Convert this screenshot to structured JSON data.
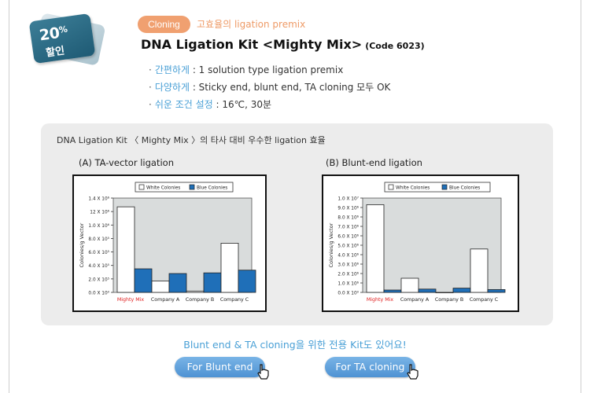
{
  "badge": {
    "percent": "20",
    "percent_sign": "%",
    "label": "할인"
  },
  "header": {
    "category": "Cloning",
    "category_sub": "고효율의 ligation premix",
    "title": "DNA Ligation Kit <Mighty Mix>",
    "code": "(Code 6023)"
  },
  "features": [
    {
      "key": "간편하게",
      "text": " : 1 solution type ligation premix"
    },
    {
      "key": "다양하게",
      "text": " : Sticky end, blunt end, TA cloning 모두 OK"
    },
    {
      "key": "쉬운 조건 설정",
      "text": " : 16℃, 30분"
    }
  ],
  "panel": {
    "title": "DNA Ligation Kit 〈 Mighty Mix 〉의 타사 대비 우수한 ligation 효율"
  },
  "colors": {
    "white_colonies": "#ffffff",
    "blue_colonies": "#1f6fb8",
    "highlight": "#e02020",
    "plot_bg": "#d9dcdc"
  },
  "chart_data": [
    {
      "type": "bar",
      "title": "(A) TA-vector ligation",
      "ylabel": "Colonies/g Vector",
      "categories": [
        "Mighty Mix",
        "Company A",
        "Company B",
        "Company C"
      ],
      "series": [
        {
          "name": "White Colonies",
          "values": [
            1270000.0,
            170000.0,
            20000.0,
            730000.0
          ]
        },
        {
          "name": "Blue Colonies",
          "values": [
            350000.0,
            280000.0,
            290000.0,
            330000.0
          ]
        }
      ],
      "ylim": [
        0,
        1400000.0
      ],
      "y_ticks": [
        "0.0 X 10⁰",
        "2.0 X 10⁵",
        "4.0 X 10⁵",
        "6.0 X 10⁵",
        "8.0 X 10⁵",
        "1.0 X 10⁶",
        "12 X 10⁶",
        "1.4 X 10⁶"
      ],
      "legend": "top-right"
    },
    {
      "type": "bar",
      "title": "(B) Blunt-end ligation",
      "ylabel": "Colonies/g Vector",
      "categories": [
        "Mighty Mix",
        "Company A",
        "Company B",
        "Company C"
      ],
      "series": [
        {
          "name": "White Colonies",
          "values": [
            9300000.0,
            1500000.0,
            0,
            4600000.0
          ]
        },
        {
          "name": "Blue Colonies",
          "values": [
            250000.0,
            350000.0,
            450000.0,
            300000.0
          ]
        }
      ],
      "ylim": [
        0,
        10000000.0
      ],
      "y_ticks": [
        "0.0 X 10⁰",
        "1.0 X 10⁶",
        "2.0 X 10⁶",
        "3.0 X 10⁶",
        "4.0 X 10⁶",
        "5.0 X 10⁶",
        "6.0 X 10⁶",
        "7.0 X 10⁶",
        "8.0 X 10⁶",
        "9.0 X 10⁶",
        "1.0 X 10⁷"
      ],
      "legend": "top-right"
    }
  ],
  "promo": "Blunt end & TA cloning을 위한 전용 Kit도 있어요!",
  "buttons": {
    "blunt": "For Blunt end",
    "ta": "For TA cloning"
  }
}
